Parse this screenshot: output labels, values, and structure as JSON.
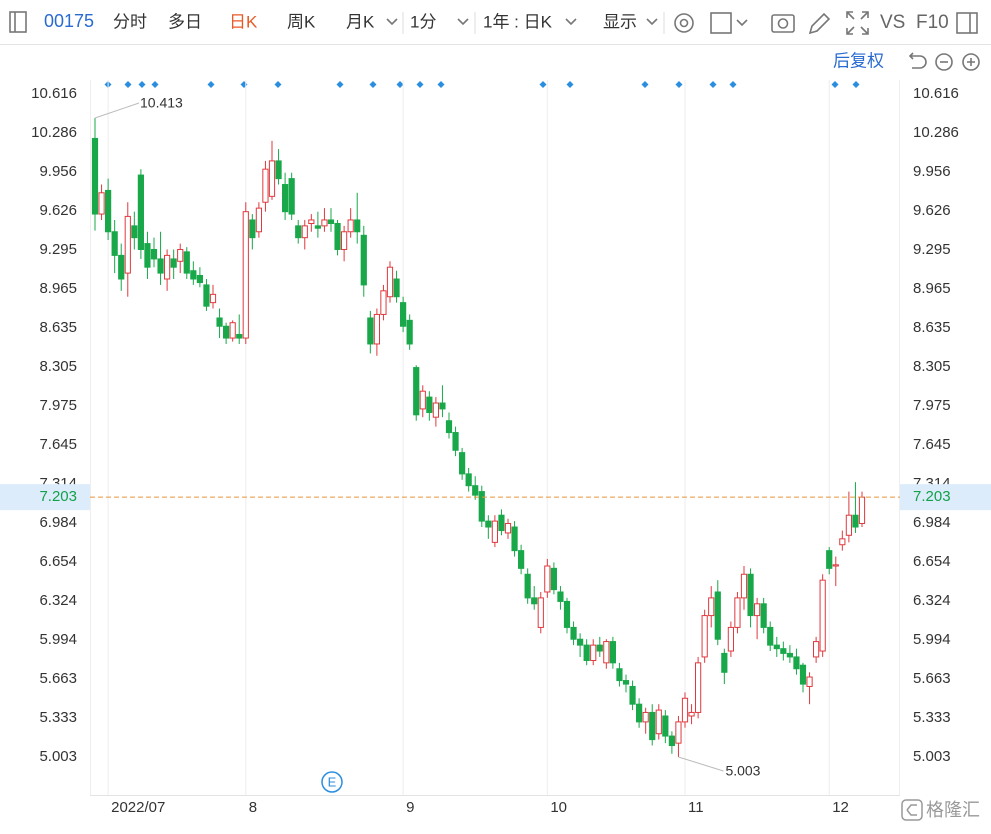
{
  "toolbar": {
    "code": "00175",
    "tabs": [
      "分时",
      "多日",
      "日K",
      "周K",
      "月K",
      "1分"
    ],
    "period": "1年 : 日K",
    "display": "显示",
    "vs": "VS",
    "f10": "F10"
  },
  "adjust": "后复权",
  "event_badge": "E",
  "watermark": "格隆汇",
  "chart_data": {
    "type": "candlestick",
    "up_color": "#e0393e",
    "down_color": "#18a84a",
    "last_price_color": "#e8953a",
    "categories": [
      null,
      null,
      "2022/07",
      null,
      null,
      null,
      null,
      null,
      null,
      null,
      null,
      null,
      null,
      null,
      null,
      null,
      null,
      null,
      null,
      null,
      null,
      null,
      null,
      "8",
      null,
      null,
      null,
      null,
      null,
      null,
      null,
      null,
      null,
      null,
      null,
      null,
      null,
      null,
      null,
      null,
      null,
      null,
      null,
      null,
      null,
      null,
      null,
      "9",
      null,
      null,
      null,
      null,
      null,
      null,
      null,
      null,
      null,
      null,
      null,
      null,
      null,
      null,
      null,
      null,
      null,
      null,
      null,
      null,
      null,
      "10",
      null,
      null,
      null,
      null,
      null,
      null,
      null,
      null,
      null,
      null,
      null,
      null,
      null,
      null,
      null,
      null,
      null,
      null,
      null,
      null,
      "11",
      null,
      null,
      null,
      null,
      null,
      null,
      null,
      null,
      null,
      null,
      null,
      null,
      null,
      null,
      null,
      null,
      null,
      null,
      null,
      null,
      null,
      "12",
      null,
      null,
      null,
      null,
      null
    ],
    "open": [
      10.24,
      9.6,
      9.8,
      9.45,
      9.25,
      9.1,
      9.5,
      9.93,
      9.35,
      9.3,
      9.22,
      9.05,
      9.22,
      9.2,
      9.28,
      9.12,
      9.08,
      9.0,
      8.85,
      8.72,
      8.65,
      8.55,
      8.58,
      8.55,
      9.55,
      9.45,
      9.7,
      9.75,
      10.05,
      9.85,
      9.9,
      9.5,
      9.4,
      9.52,
      9.5,
      9.5,
      9.55,
      9.52,
      9.3,
      9.45,
      9.55,
      9.42,
      8.72,
      8.5,
      8.75,
      8.9,
      9.05,
      8.85,
      8.7,
      8.3,
      7.95,
      8.05,
      7.88,
      8.0,
      7.85,
      7.75,
      7.58,
      7.4,
      7.3,
      7.25,
      7.0,
      6.82,
      7.05,
      6.9,
      6.95,
      6.75,
      6.55,
      6.35,
      6.1,
      6.4,
      6.6,
      6.4,
      6.32,
      6.1,
      6.0,
      5.95,
      5.82,
      5.95,
      5.8,
      5.98,
      5.75,
      5.65,
      5.6,
      5.45,
      5.3,
      5.38,
      5.2,
      5.35,
      5.18,
      5.12,
      5.3,
      5.35,
      5.38,
      5.85,
      6.2,
      6.4,
      5.88,
      5.9,
      6.1,
      6.35,
      6.55,
      6.2,
      6.3,
      6.1,
      5.95,
      5.92,
      5.88,
      5.85,
      5.78,
      5.6,
      5.85,
      5.9,
      6.75,
      6.62,
      6.8,
      6.88,
      7.05,
      6.98
    ],
    "high": [
      10.413,
      9.85,
      9.9,
      9.55,
      9.35,
      9.7,
      9.62,
      9.98,
      9.45,
      9.4,
      9.45,
      9.3,
      9.3,
      9.35,
      9.32,
      9.2,
      9.15,
      9.05,
      9.0,
      8.8,
      8.68,
      8.7,
      8.75,
      9.7,
      9.6,
      9.7,
      10.05,
      10.22,
      10.15,
      9.95,
      9.95,
      9.55,
      9.55,
      9.6,
      9.62,
      9.65,
      9.65,
      9.55,
      9.5,
      9.65,
      9.78,
      9.5,
      8.78,
      8.8,
      9.0,
      9.2,
      9.12,
      8.9,
      8.75,
      8.32,
      8.15,
      8.1,
      8.05,
      8.15,
      7.92,
      7.8,
      7.62,
      7.45,
      7.38,
      7.3,
      7.05,
      7.05,
      7.1,
      7.02,
      7.0,
      6.8,
      6.6,
      6.45,
      6.4,
      6.68,
      6.65,
      6.45,
      6.35,
      6.15,
      6.05,
      6.0,
      6.0,
      6.02,
      6.0,
      6.02,
      5.8,
      5.7,
      5.65,
      5.5,
      5.42,
      5.45,
      5.45,
      5.4,
      5.22,
      5.35,
      5.55,
      5.45,
      5.85,
      6.25,
      6.45,
      6.5,
      5.92,
      6.15,
      6.4,
      6.62,
      6.6,
      6.35,
      6.35,
      6.15,
      6.02,
      5.98,
      5.95,
      5.92,
      5.8,
      5.72,
      6.02,
      6.55,
      6.78,
      6.7,
      6.92,
      7.25,
      7.33,
      7.25
    ],
    "low": [
      9.46,
      9.55,
      9.38,
      9.1,
      8.95,
      8.9,
      9.3,
      9.22,
      9.05,
      9.15,
      9.0,
      8.95,
      9.05,
      9.1,
      9.05,
      9.0,
      8.98,
      8.78,
      8.8,
      8.55,
      8.5,
      8.52,
      8.5,
      8.5,
      9.3,
      9.4,
      9.62,
      9.72,
      9.85,
      9.55,
      9.55,
      9.35,
      9.3,
      9.45,
      9.4,
      9.45,
      9.45,
      9.25,
      9.2,
      9.4,
      9.35,
      8.9,
      8.42,
      8.4,
      8.7,
      8.85,
      8.85,
      8.6,
      8.45,
      7.85,
      7.88,
      7.85,
      7.8,
      7.88,
      7.7,
      7.55,
      7.35,
      7.25,
      7.18,
      6.95,
      6.85,
      6.78,
      6.88,
      6.85,
      6.7,
      6.55,
      6.3,
      6.25,
      6.05,
      6.35,
      6.38,
      6.25,
      6.05,
      5.95,
      5.85,
      5.78,
      5.78,
      5.85,
      5.75,
      5.75,
      5.6,
      5.55,
      5.4,
      5.25,
      5.2,
      5.1,
      5.15,
      5.12,
      5.03,
      5.003,
      5.25,
      5.28,
      5.33,
      5.8,
      6.1,
      5.95,
      5.62,
      5.85,
      6.05,
      6.25,
      6.1,
      6.0,
      6.05,
      5.9,
      5.85,
      5.82,
      5.8,
      5.7,
      5.55,
      5.45,
      5.8,
      5.85,
      6.55,
      6.45,
      6.75,
      6.82,
      6.9,
      6.95
    ],
    "close": [
      9.6,
      9.78,
      9.45,
      9.25,
      9.05,
      9.58,
      9.4,
      9.3,
      9.15,
      9.22,
      9.1,
      9.25,
      9.15,
      9.3,
      9.1,
      9.05,
      9.02,
      8.82,
      8.92,
      8.65,
      8.55,
      8.68,
      8.55,
      9.62,
      9.4,
      9.65,
      9.98,
      10.05,
      9.9,
      9.62,
      9.6,
      9.4,
      9.5,
      9.55,
      9.48,
      9.55,
      9.52,
      9.3,
      9.45,
      9.55,
      9.45,
      9.0,
      8.5,
      8.75,
      8.95,
      9.15,
      8.9,
      8.65,
      8.5,
      7.9,
      8.1,
      7.92,
      8.0,
      7.95,
      7.75,
      7.6,
      7.4,
      7.3,
      7.22,
      7.0,
      6.95,
      7.0,
      6.92,
      6.98,
      6.75,
      6.6,
      6.35,
      6.3,
      6.35,
      6.62,
      6.42,
      6.32,
      6.1,
      6.0,
      5.95,
      5.82,
      5.95,
      5.9,
      5.98,
      5.8,
      5.65,
      5.62,
      5.45,
      5.3,
      5.38,
      5.15,
      5.4,
      5.18,
      5.1,
      5.3,
      5.5,
      5.38,
      5.8,
      6.2,
      6.35,
      6.0,
      5.72,
      6.1,
      6.35,
      6.55,
      6.2,
      6.3,
      6.1,
      5.95,
      5.92,
      5.88,
      5.85,
      5.75,
      5.62,
      5.68,
      5.98,
      6.5,
      6.6,
      6.63,
      6.85,
      7.05,
      6.95,
      7.203
    ],
    "last_price": 7.203,
    "ylim": [
      4.681,
      10.735
    ],
    "yticks": [
      10.616,
      10.286,
      9.956,
      9.626,
      9.295,
      8.965,
      8.635,
      8.305,
      7.975,
      7.645,
      7.314,
      6.984,
      6.654,
      6.324,
      5.994,
      5.663,
      5.333,
      5.003
    ]
  }
}
